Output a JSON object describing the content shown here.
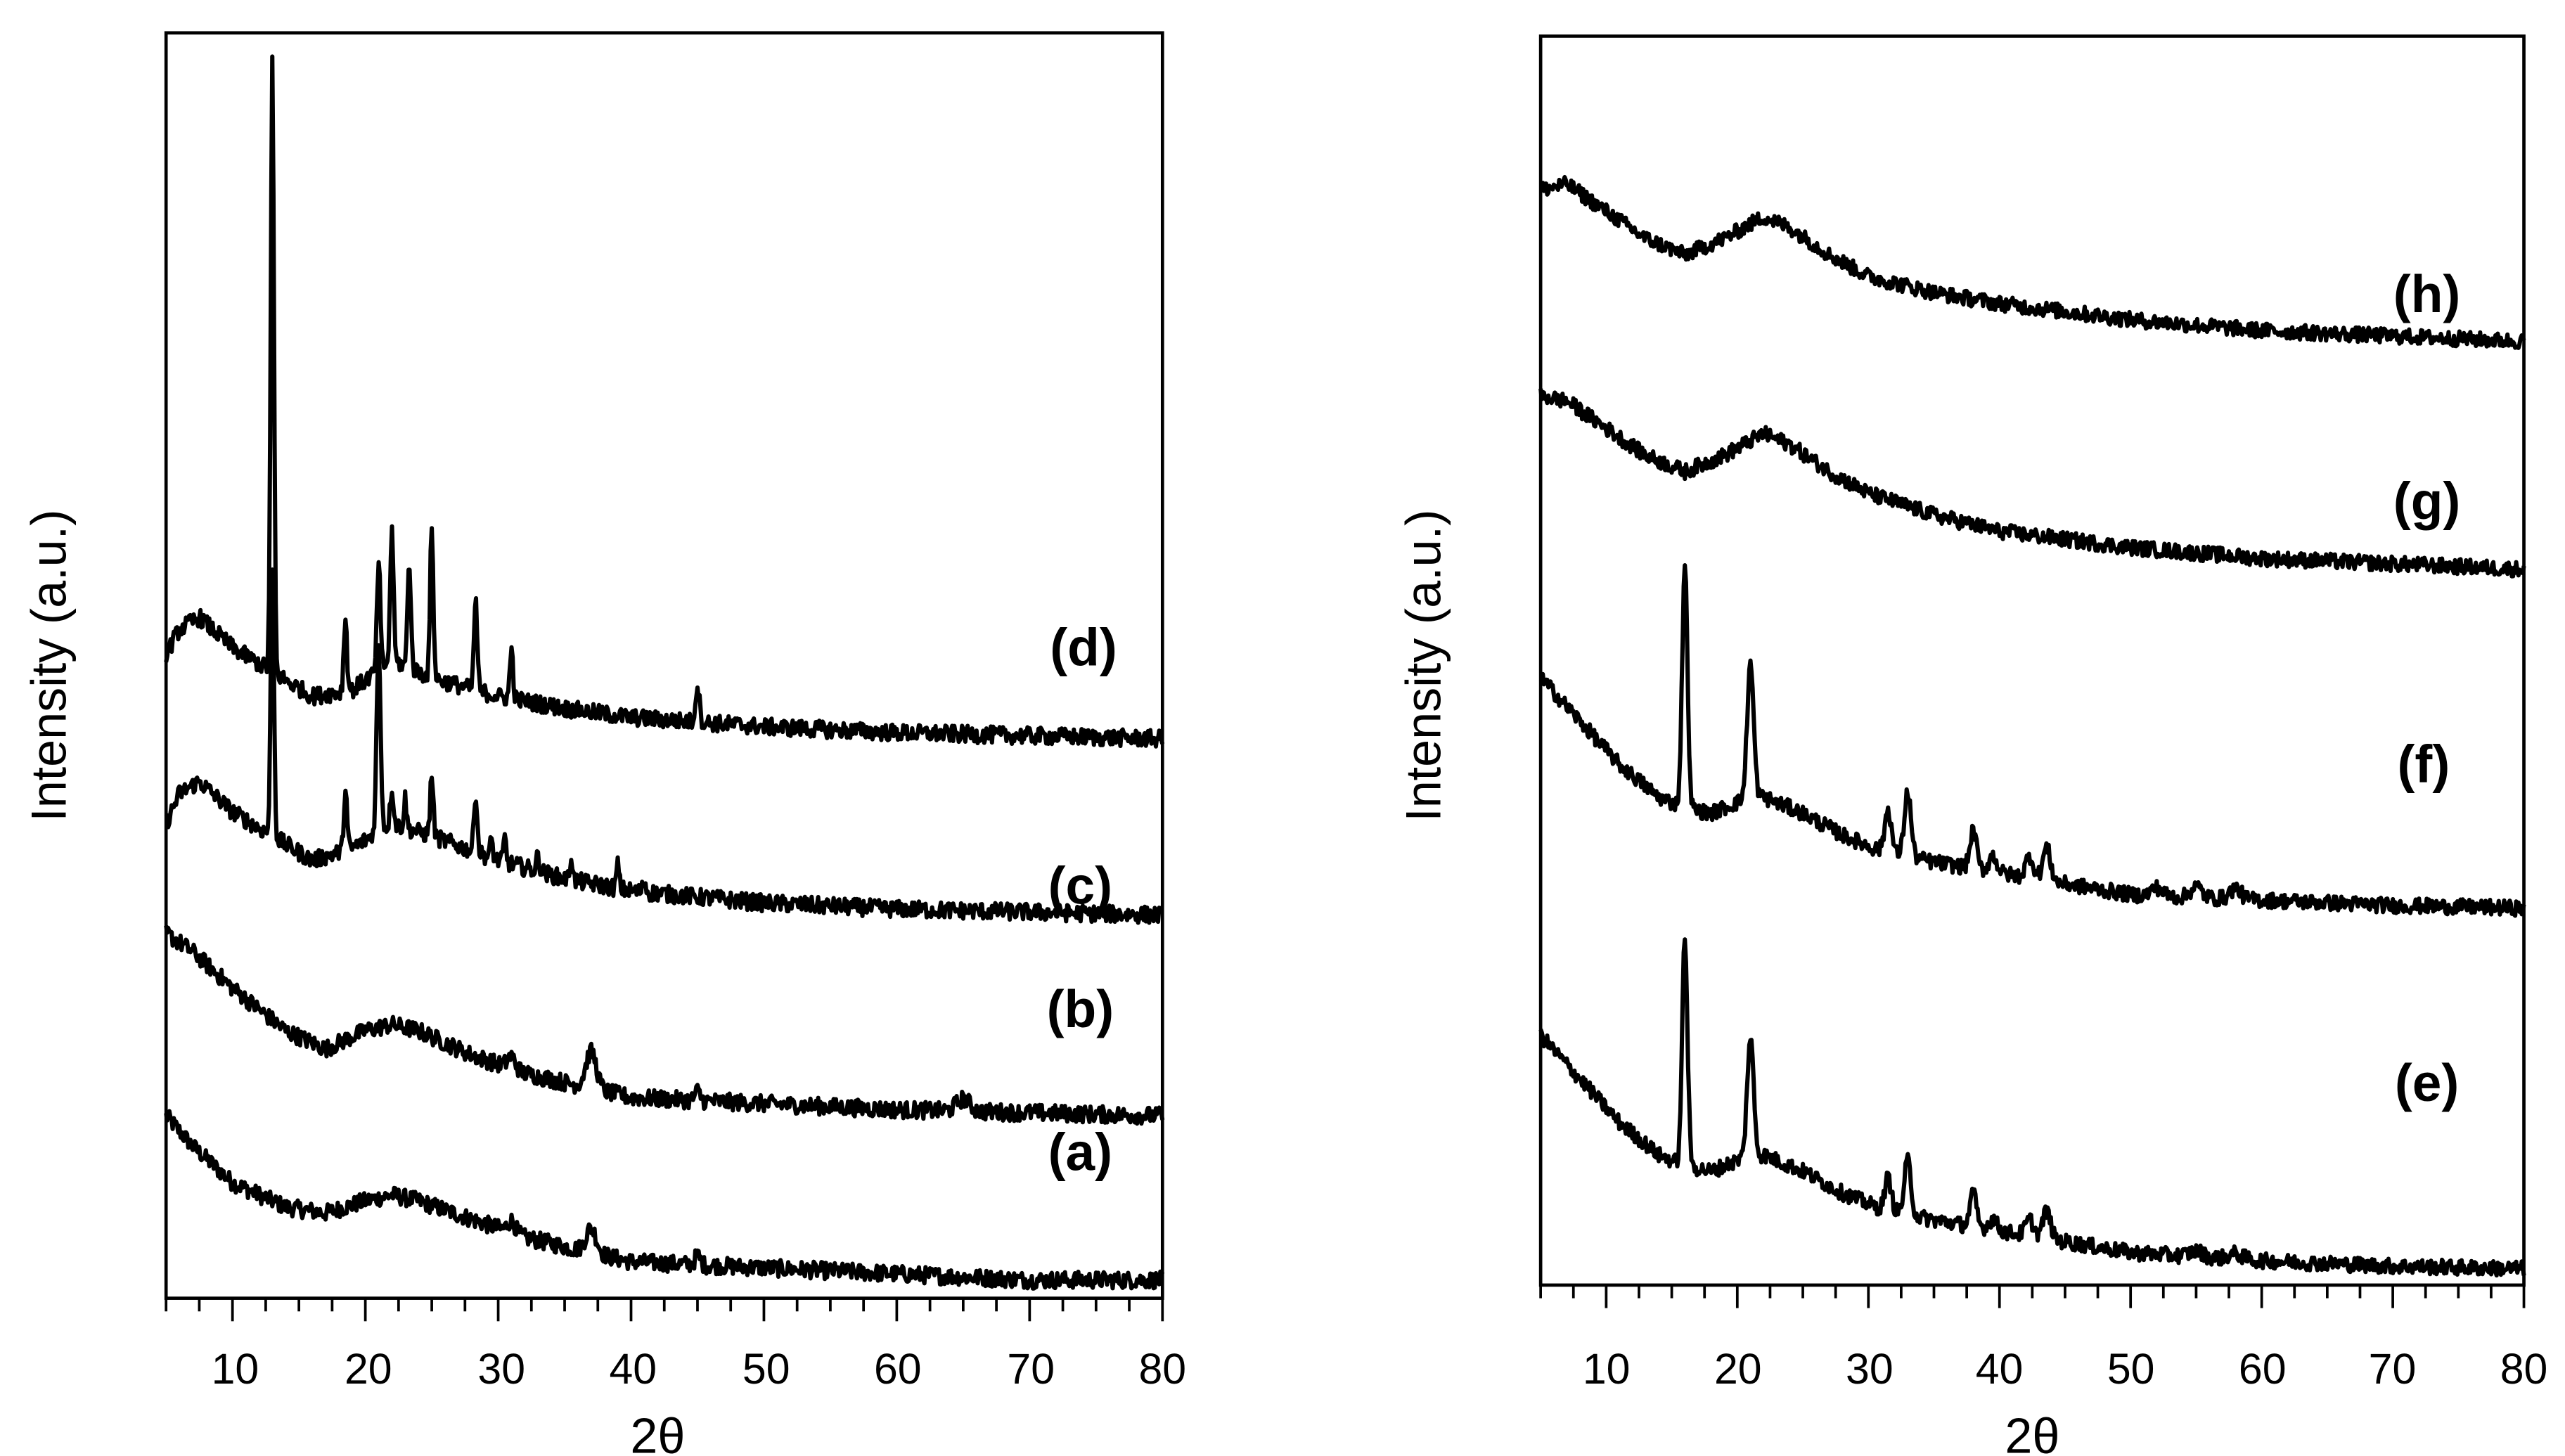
{
  "chart_data": [
    {
      "type": "line",
      "title": "",
      "xlabel": "2θ",
      "ylabel": "Intensity (a.u.)",
      "xlim": [
        5,
        80
      ],
      "xticks": [
        10,
        20,
        30,
        40,
        50,
        60,
        70,
        80
      ],
      "grid": false,
      "legend": "inline labels at right end of each trace",
      "series": [
        {
          "name": "(a)",
          "description": "amorphous XRD pattern, broad hump ~22°, small peaks ~31° and ~37°",
          "x": [
            5,
            8,
            12,
            16,
            20,
            22,
            25,
            30,
            35,
            37,
            40,
            50,
            60,
            70,
            80
          ],
          "y": [
            0.3,
            0.2,
            0.13,
            0.12,
            0.16,
            0.17,
            0.14,
            0.1,
            0.08,
            0.1,
            0.06,
            0.05,
            0.04,
            0.03,
            0.03
          ]
        },
        {
          "name": "(b)",
          "description": "broad hump ~22°, peaks ~31°, ~37°, weak ~65°",
          "x": [
            5,
            8,
            12,
            16,
            20,
            22,
            25,
            30,
            35,
            37,
            40,
            50,
            60,
            65,
            70,
            80
          ],
          "y": [
            0.6,
            0.52,
            0.45,
            0.4,
            0.44,
            0.45,
            0.42,
            0.38,
            0.35,
            0.4,
            0.33,
            0.32,
            0.31,
            0.33,
            0.31,
            0.3
          ]
        },
        {
          "name": "(c)",
          "description": "hump ~7°, sharp peaks at ~13°, 18.5°, 21°, 22.5°, 25°, 28°, 30°, 33°, 36°, 39°",
          "x": [
            5,
            7,
            10,
            13,
            15,
            18.5,
            21,
            22.5,
            25,
            28,
            30,
            33,
            36,
            39,
            45,
            55,
            70,
            80
          ],
          "y": [
            0.78,
            0.84,
            0.78,
            1.22,
            0.72,
            0.83,
            1.1,
            0.82,
            0.86,
            0.85,
            0.74,
            0.72,
            0.7,
            0.69,
            0.66,
            0.64,
            0.63,
            0.63
          ]
        },
        {
          "name": "(d)",
          "description": "hump ~7°, very strong peak ~13°, peaks at ~18.5°, 21°, 22°, 23.5°, 25°, 28°, 31°, 45°",
          "x": [
            5,
            7,
            10,
            13,
            15,
            18.5,
            21,
            22,
            23.5,
            25,
            28,
            31,
            35,
            45,
            55,
            70,
            80
          ],
          "y": [
            1.07,
            1.12,
            1.05,
            2.03,
            0.98,
            1.05,
            1.14,
            1.17,
            1.15,
            1.18,
            1.12,
            1.05,
            0.98,
            0.96,
            0.93,
            0.92,
            0.92
          ]
        }
      ],
      "labels": [
        "(a)",
        "(b)",
        "(c)",
        "(d)"
      ]
    },
    {
      "type": "line",
      "title": "",
      "xlabel": "2θ",
      "ylabel": "Intensity (a.u.)",
      "xlim": [
        5,
        80
      ],
      "xticks": [
        10,
        20,
        30,
        40,
        50,
        60,
        70,
        80
      ],
      "grid": false,
      "legend": "inline labels at right end of each trace",
      "series": [
        {
          "name": "(e)",
          "description": "decaying background, sharp peaks ~16°, ~21°, smaller ~31.5°, 33°, 38°, 42°, 43.5°",
          "x": [
            5,
            10,
            15,
            16,
            17,
            21,
            23,
            28,
            31.5,
            33,
            38,
            42,
            43.5,
            50,
            60,
            70,
            80
          ],
          "y": [
            0.45,
            0.3,
            0.18,
            0.6,
            0.18,
            0.42,
            0.25,
            0.16,
            0.12,
            0.17,
            0.1,
            0.08,
            0.1,
            0.05,
            0.04,
            0.03,
            0.02
          ]
        },
        {
          "name": "(f)",
          "description": "same phase as (e): sharp peaks ~16°, ~21°, ~31.5°, 33°, 38°, 42°, 43.5°",
          "x": [
            5,
            10,
            15,
            16,
            17,
            21,
            23,
            28,
            31.5,
            33,
            38,
            42,
            43.5,
            50,
            60,
            70,
            80
          ],
          "y": [
            1.12,
            0.97,
            0.86,
            1.32,
            0.85,
            1.12,
            0.92,
            0.82,
            0.78,
            0.85,
            0.76,
            0.74,
            0.76,
            0.72,
            0.71,
            0.7,
            0.69
          ]
        },
        {
          "name": "(g)",
          "description": "amorphous, hump ~7° and broad hump ~22°",
          "x": [
            5,
            8,
            12,
            15,
            18,
            22,
            25,
            30,
            40,
            50,
            60,
            70,
            80
          ],
          "y": [
            1.64,
            1.62,
            1.55,
            1.5,
            1.53,
            1.57,
            1.52,
            1.45,
            1.39,
            1.36,
            1.34,
            1.33,
            1.32
          ]
        },
        {
          "name": "(h)",
          "description": "amorphous, hump ~7° and broad hump ~22°",
          "x": [
            5,
            8,
            12,
            15,
            18,
            22,
            25,
            30,
            40,
            50,
            60,
            70,
            80
          ],
          "y": [
            2.02,
            2.02,
            1.95,
            1.9,
            1.92,
            1.97,
            1.92,
            1.86,
            1.81,
            1.78,
            1.76,
            1.75,
            1.74
          ]
        }
      ],
      "labels": [
        "(e)",
        "(f)",
        "(g)",
        "(h)"
      ]
    }
  ],
  "left_panel": {
    "ylabel": "Intensity (a.u.)",
    "xlabel": "2θ",
    "ticks": [
      "10",
      "20",
      "30",
      "40",
      "50",
      "60",
      "70",
      "80"
    ],
    "labels": {
      "a": "(a)",
      "b": "(b)",
      "c": "(c)",
      "d": "(d)"
    }
  },
  "right_panel": {
    "ylabel": "Intensity (a.u.)",
    "xlabel": "2θ",
    "ticks": [
      "10",
      "20",
      "30",
      "40",
      "50",
      "60",
      "70",
      "80"
    ],
    "labels": {
      "e": "(e)",
      "f": "(f)",
      "g": "(g)",
      "h": "(h)"
    }
  }
}
